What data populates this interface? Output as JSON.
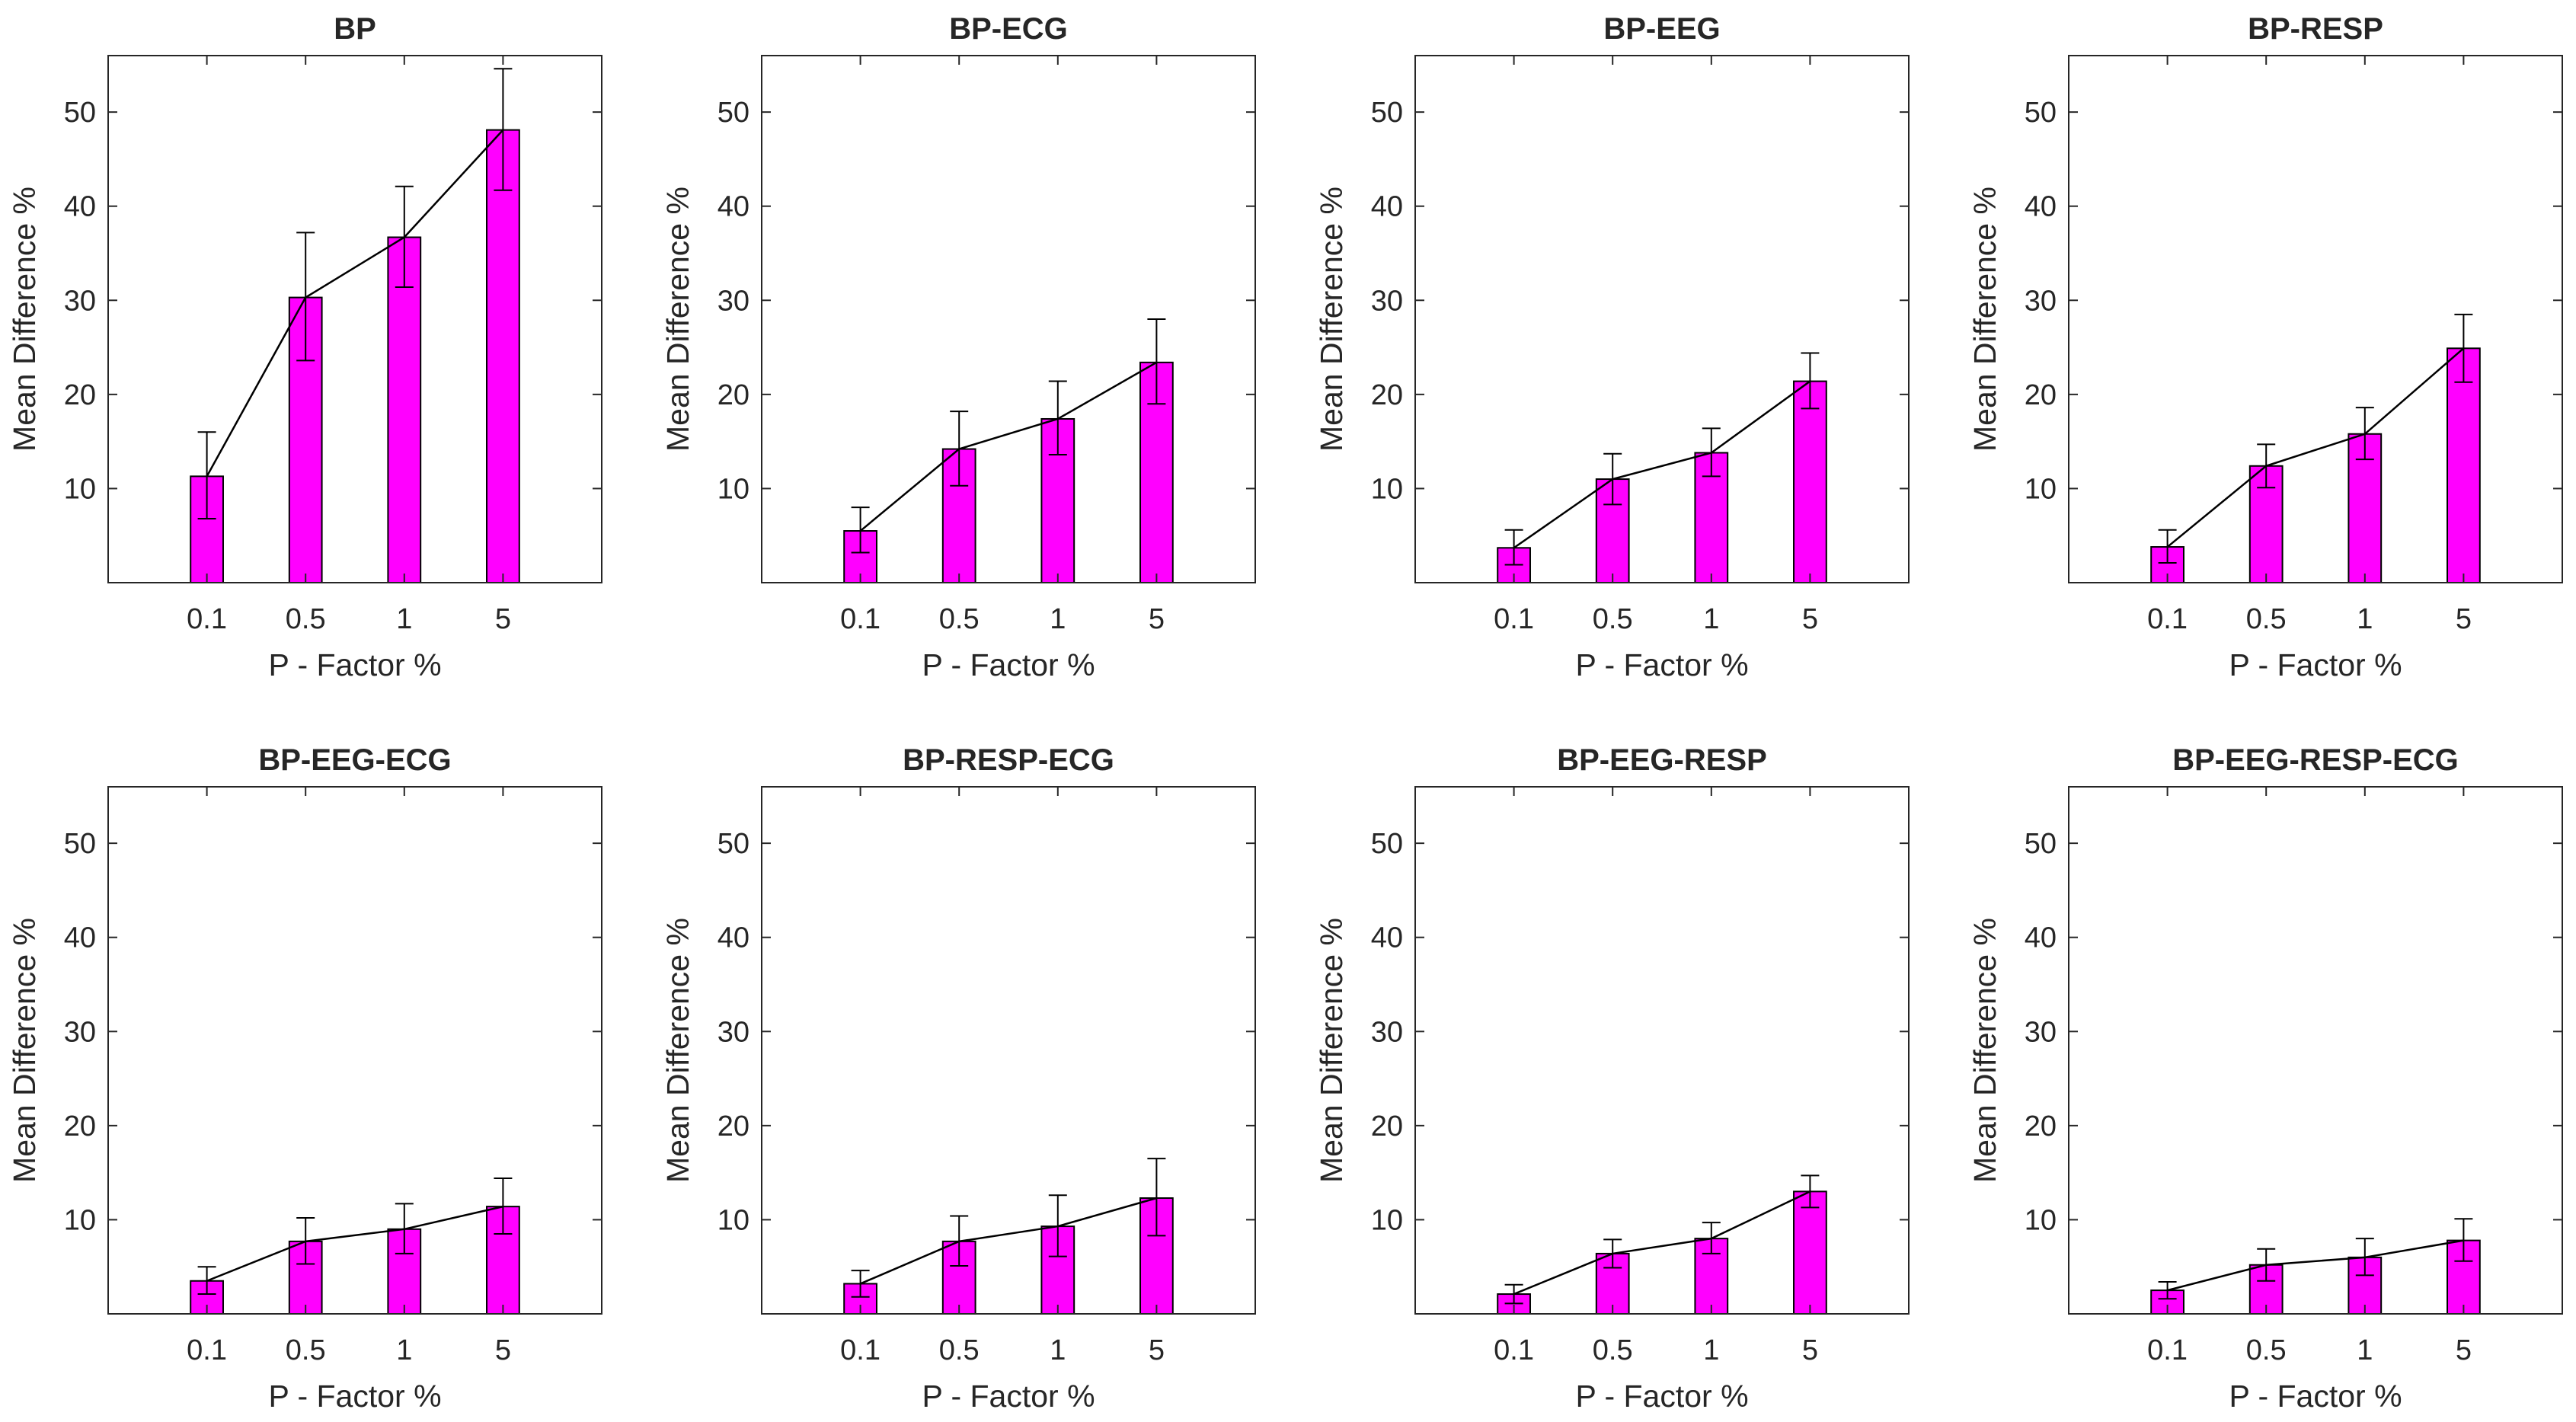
{
  "chart_data": [
    {
      "type": "bar",
      "title": "BP",
      "categories": [
        "0.1",
        "0.5",
        "1",
        "5"
      ],
      "values": [
        11.3,
        30.3,
        36.7,
        48.1
      ],
      "error_low": [
        4.5,
        6.7,
        5.3,
        6.4
      ],
      "error_high": [
        4.7,
        6.9,
        5.4,
        6.5
      ],
      "xlabel": "P - Factor %",
      "ylabel": "Mean Difference %",
      "ylim": [
        0,
        56
      ],
      "yticks": [
        "10",
        "20",
        "30",
        "40",
        "50"
      ],
      "line_overlay": true,
      "bar_color": "#ff00ff",
      "grid": false
    },
    {
      "type": "bar",
      "title": "BP-ECG",
      "categories": [
        "0.1",
        "0.5",
        "1",
        "5"
      ],
      "values": [
        5.5,
        14.2,
        17.4,
        23.4
      ],
      "error_low": [
        2.3,
        3.9,
        3.8,
        4.4
      ],
      "error_high": [
        2.5,
        4.0,
        4.0,
        4.6
      ],
      "xlabel": "P - Factor %",
      "ylabel": "Mean Difference %",
      "ylim": [
        0,
        56
      ],
      "yticks": [
        "10",
        "20",
        "30",
        "40",
        "50"
      ],
      "line_overlay": true,
      "bar_color": "#ff00ff",
      "grid": false
    },
    {
      "type": "bar",
      "title": "BP-EEG",
      "categories": [
        "0.1",
        "0.5",
        "1",
        "5"
      ],
      "values": [
        3.7,
        11.0,
        13.8,
        21.4
      ],
      "error_low": [
        1.8,
        2.7,
        2.5,
        2.9
      ],
      "error_high": [
        1.9,
        2.7,
        2.6,
        3.0
      ],
      "xlabel": "P - Factor %",
      "ylabel": "Mean Difference %",
      "ylim": [
        0,
        56
      ],
      "yticks": [
        "10",
        "20",
        "30",
        "40",
        "50"
      ],
      "line_overlay": true,
      "bar_color": "#ff00ff",
      "grid": false
    },
    {
      "type": "bar",
      "title": "BP-RESP",
      "categories": [
        "0.1",
        "0.5",
        "1",
        "5"
      ],
      "values": [
        3.8,
        12.4,
        15.8,
        24.9
      ],
      "error_low": [
        1.7,
        2.3,
        2.7,
        3.6
      ],
      "error_high": [
        1.8,
        2.3,
        2.8,
        3.6
      ],
      "xlabel": "P - Factor %",
      "ylabel": "Mean Difference %",
      "ylim": [
        0,
        56
      ],
      "yticks": [
        "10",
        "20",
        "30",
        "40",
        "50"
      ],
      "line_overlay": true,
      "bar_color": "#ff00ff",
      "grid": false
    },
    {
      "type": "bar",
      "title": "BP-EEG-ECG",
      "categories": [
        "0.1",
        "0.5",
        "1",
        "5"
      ],
      "values": [
        3.5,
        7.7,
        9.0,
        11.4
      ],
      "error_low": [
        1.4,
        2.4,
        2.6,
        2.9
      ],
      "error_high": [
        1.5,
        2.5,
        2.7,
        3.0
      ],
      "xlabel": "P - Factor %",
      "ylabel": "Mean Difference %",
      "ylim": [
        0,
        56
      ],
      "yticks": [
        "10",
        "20",
        "30",
        "40",
        "50"
      ],
      "line_overlay": true,
      "bar_color": "#ff00ff",
      "grid": false
    },
    {
      "type": "bar",
      "title": "BP-RESP-ECG",
      "categories": [
        "0.1",
        "0.5",
        "1",
        "5"
      ],
      "values": [
        3.2,
        7.7,
        9.3,
        12.3
      ],
      "error_low": [
        1.4,
        2.6,
        3.2,
        4.0
      ],
      "error_high": [
        1.4,
        2.7,
        3.3,
        4.2
      ],
      "xlabel": "P - Factor %",
      "ylabel": "Mean Difference %",
      "ylim": [
        0,
        56
      ],
      "yticks": [
        "10",
        "20",
        "30",
        "40",
        "50"
      ],
      "line_overlay": true,
      "bar_color": "#ff00ff",
      "grid": false
    },
    {
      "type": "bar",
      "title": "BP-EEG-RESP",
      "categories": [
        "0.1",
        "0.5",
        "1",
        "5"
      ],
      "values": [
        2.1,
        6.4,
        8.0,
        13.0
      ],
      "error_low": [
        1.0,
        1.5,
        1.6,
        1.7
      ],
      "error_high": [
        1.0,
        1.5,
        1.7,
        1.7
      ],
      "xlabel": "P - Factor %",
      "ylabel": "Mean Difference %",
      "ylim": [
        0,
        56
      ],
      "yticks": [
        "10",
        "20",
        "30",
        "40",
        "50"
      ],
      "line_overlay": true,
      "bar_color": "#ff00ff",
      "grid": false
    },
    {
      "type": "bar",
      "title": "BP-EEG-RESP-ECG",
      "categories": [
        "0.1",
        "0.5",
        "1",
        "5"
      ],
      "values": [
        2.5,
        5.2,
        6.0,
        7.8
      ],
      "error_low": [
        0.9,
        1.7,
        1.9,
        2.2
      ],
      "error_high": [
        0.9,
        1.7,
        2.0,
        2.3
      ],
      "xlabel": "P - Factor %",
      "ylabel": "Mean Difference %",
      "ylim": [
        0,
        56
      ],
      "yticks": [
        "10",
        "20",
        "30",
        "40",
        "50"
      ],
      "line_overlay": true,
      "bar_color": "#ff00ff",
      "grid": false
    }
  ]
}
